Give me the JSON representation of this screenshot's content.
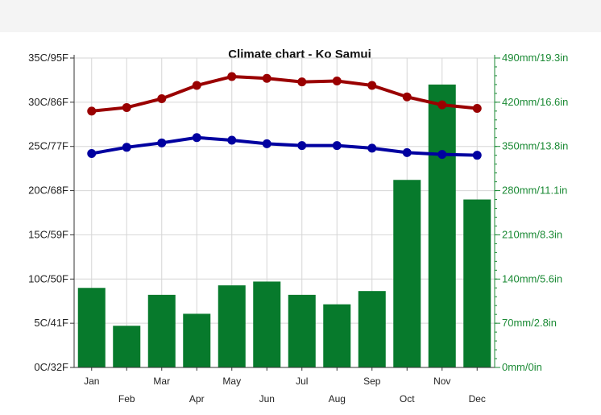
{
  "chart_data": {
    "type": "bar",
    "title": "Climate chart - Ko Samui",
    "categories": [
      "Jan",
      "Feb",
      "Mar",
      "Apr",
      "May",
      "Jun",
      "Jul",
      "Aug",
      "Sep",
      "Oct",
      "Nov",
      "Dec"
    ],
    "series": [
      {
        "type": "line",
        "axis": "left",
        "color": "#9a0000",
        "values": [
          29.0,
          29.4,
          30.4,
          31.9,
          32.9,
          32.7,
          32.3,
          32.4,
          31.9,
          30.6,
          29.7,
          29.3
        ]
      },
      {
        "type": "line",
        "axis": "left",
        "color": "#0000a0",
        "values": [
          24.2,
          24.9,
          25.4,
          26.0,
          25.7,
          25.3,
          25.1,
          25.1,
          24.8,
          24.3,
          24.1,
          24.0
        ]
      },
      {
        "type": "bar",
        "axis": "right",
        "color": "#077a2c",
        "values": [
          126,
          66,
          115,
          85,
          130,
          136,
          115,
          100,
          121,
          297,
          448,
          266
        ]
      }
    ],
    "left_axis": {
      "ylim": [
        0,
        35
      ],
      "ticks": [
        {
          "value": 0,
          "label": "0C/32F"
        },
        {
          "value": 5,
          "label": "5C/41F"
        },
        {
          "value": 10,
          "label": "10C/50F"
        },
        {
          "value": 15,
          "label": "15C/59F"
        },
        {
          "value": 20,
          "label": "20C/68F"
        },
        {
          "value": 25,
          "label": "25C/77F"
        },
        {
          "value": 30,
          "label": "30C/86F"
        },
        {
          "value": 35,
          "label": "35C/95F"
        }
      ]
    },
    "right_axis": {
      "ylim": [
        0,
        490
      ],
      "minor_step": 14,
      "ticks": [
        {
          "value": 0,
          "label": "0mm/0in"
        },
        {
          "value": 70,
          "label": "70mm/2.8in"
        },
        {
          "value": 140,
          "label": "140mm/5.6in"
        },
        {
          "value": 210,
          "label": "210mm/8.3in"
        },
        {
          "value": 280,
          "label": "280mm/11.1in"
        },
        {
          "value": 350,
          "label": "350mm/13.8in"
        },
        {
          "value": 420,
          "label": "420mm/16.6in"
        },
        {
          "value": 490,
          "label": "490mm/19.3in"
        }
      ]
    },
    "grid": true
  }
}
